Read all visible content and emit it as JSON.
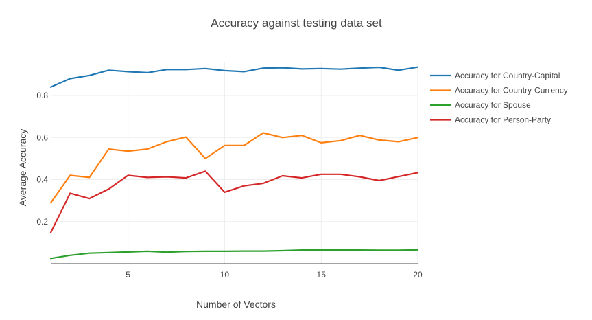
{
  "chart_data": {
    "type": "line",
    "title": "Accuracy against testing data set",
    "xlabel": "Number of Vectors",
    "ylabel": "Average Accuracy",
    "xlim": [
      1,
      20
    ],
    "ylim": [
      0,
      0.96
    ],
    "xticks": [
      5,
      10,
      15,
      20
    ],
    "yticks": [
      0.2,
      0.4,
      0.6,
      0.8
    ],
    "grid": true,
    "legend_position": "top-right",
    "x": [
      1,
      2,
      3,
      4,
      5,
      6,
      7,
      8,
      9,
      10,
      11,
      12,
      13,
      14,
      15,
      16,
      17,
      18,
      19,
      20
    ],
    "series": [
      {
        "name": "Accuracy for Country-Capital",
        "color": "#1f77b4",
        "values": [
          0.84,
          0.88,
          0.895,
          0.92,
          0.913,
          0.908,
          0.923,
          0.923,
          0.928,
          0.918,
          0.913,
          0.93,
          0.932,
          0.926,
          0.928,
          0.925,
          0.93,
          0.934,
          0.92,
          0.935
        ]
      },
      {
        "name": "Accuracy for Country-Currency",
        "color": "#ff7f0e",
        "values": [
          0.29,
          0.42,
          0.41,
          0.545,
          0.535,
          0.545,
          0.58,
          0.602,
          0.5,
          0.562,
          0.562,
          0.622,
          0.6,
          0.61,
          0.575,
          0.585,
          0.61,
          0.588,
          0.58,
          0.6
        ]
      },
      {
        "name": "Accuracy for Spouse",
        "color": "#2ca02c",
        "values": [
          0.025,
          0.04,
          0.05,
          0.053,
          0.056,
          0.059,
          0.055,
          0.058,
          0.059,
          0.059,
          0.06,
          0.06,
          0.062,
          0.065,
          0.065,
          0.065,
          0.065,
          0.064,
          0.064,
          0.066
        ]
      },
      {
        "name": "Accuracy for Person-Party",
        "color": "#d62728",
        "values": [
          0.148,
          0.335,
          0.31,
          0.355,
          0.42,
          0.41,
          0.413,
          0.408,
          0.44,
          0.34,
          0.37,
          0.382,
          0.418,
          0.408,
          0.425,
          0.425,
          0.413,
          0.395,
          0.414,
          0.433
        ]
      }
    ]
  }
}
